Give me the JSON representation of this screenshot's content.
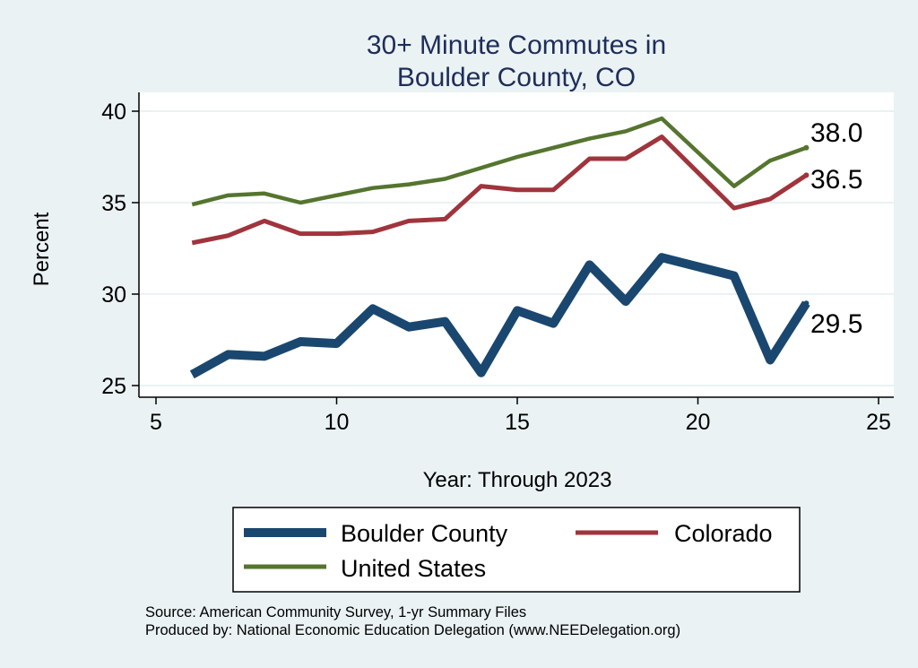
{
  "chart_data": {
    "type": "line",
    "title": [
      "30+ Minute Commutes in",
      "Boulder County, CO"
    ],
    "xlabel": "Year: Through 2023",
    "ylabel": "Percent",
    "xlim": [
      5,
      25
    ],
    "ylim": [
      25,
      40
    ],
    "xticks": [
      5,
      10,
      15,
      20,
      25
    ],
    "yticks": [
      25,
      30,
      35,
      40
    ],
    "grid": true,
    "legend_position": "bottom",
    "series": [
      {
        "name": "Boulder County",
        "color": "#1a476f",
        "end_label": "29.5",
        "x": [
          6,
          7,
          8,
          9,
          10,
          11,
          12,
          13,
          14,
          15,
          16,
          17,
          18,
          19,
          21,
          22,
          23
        ],
        "values": [
          25.6,
          26.7,
          26.6,
          27.4,
          27.3,
          29.2,
          28.2,
          28.5,
          25.7,
          29.1,
          28.4,
          31.6,
          29.6,
          32.0,
          31.0,
          26.4,
          29.5
        ]
      },
      {
        "name": "Colorado",
        "color": "#a0343c",
        "end_label": "36.5",
        "x": [
          6,
          7,
          8,
          9,
          10,
          11,
          12,
          13,
          14,
          15,
          16,
          17,
          18,
          19,
          21,
          22,
          23
        ],
        "values": [
          32.8,
          33.2,
          34.0,
          33.3,
          33.3,
          33.4,
          34.0,
          34.1,
          35.9,
          35.7,
          35.7,
          37.4,
          37.4,
          38.6,
          34.7,
          35.2,
          36.5
        ]
      },
      {
        "name": "United States",
        "color": "#55752f",
        "end_label": "38.0",
        "x": [
          6,
          7,
          8,
          9,
          10,
          11,
          12,
          13,
          14,
          15,
          16,
          17,
          18,
          19,
          21,
          22,
          23
        ],
        "values": [
          34.9,
          35.4,
          35.5,
          35.0,
          35.4,
          35.8,
          36.0,
          36.3,
          36.9,
          37.5,
          38.0,
          38.5,
          38.9,
          39.6,
          35.9,
          37.3,
          38.0
        ]
      }
    ],
    "notes": [
      "Source: American Community Survey, 1-yr Summary Files",
      "Produced by: National Economic Education Delegation (www.NEEDelegation.org)"
    ]
  }
}
